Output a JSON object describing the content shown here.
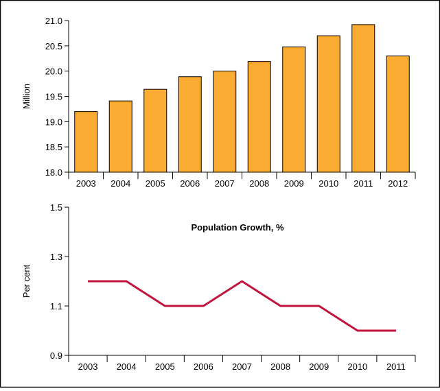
{
  "chart_data": [
    {
      "type": "bar",
      "categories": [
        "2003",
        "2004",
        "2005",
        "2006",
        "2007",
        "2008",
        "2009",
        "2010",
        "2011",
        "2012"
      ],
      "values": [
        19.2,
        19.41,
        19.64,
        19.89,
        20.0,
        20.19,
        20.48,
        20.7,
        20.92,
        20.3
      ],
      "title": "",
      "xlabel": "",
      "ylabel": "Million",
      "ylim": [
        18.0,
        21.0
      ],
      "yticks": [
        "18.0",
        "18.5",
        "19.0",
        "19.5",
        "20.0",
        "20.5",
        "21.0"
      ],
      "grid": false,
      "color": "#f9ab32",
      "edge_color": "#000000"
    },
    {
      "type": "line",
      "x": [
        "2003",
        "2004",
        "2005",
        "2006",
        "2007",
        "2008",
        "2009",
        "2010",
        "2011"
      ],
      "values": [
        1.2,
        1.2,
        1.1,
        1.1,
        1.2,
        1.1,
        1.1,
        1.0,
        1.0
      ],
      "title": "Population Growth, %",
      "xlabel": "",
      "ylabel": "Per cent",
      "ylim": [
        0.9,
        1.5
      ],
      "yticks": [
        "0.9",
        "1.1",
        "1.3",
        "1.5"
      ],
      "grid": false,
      "color": "#c0143c"
    }
  ]
}
